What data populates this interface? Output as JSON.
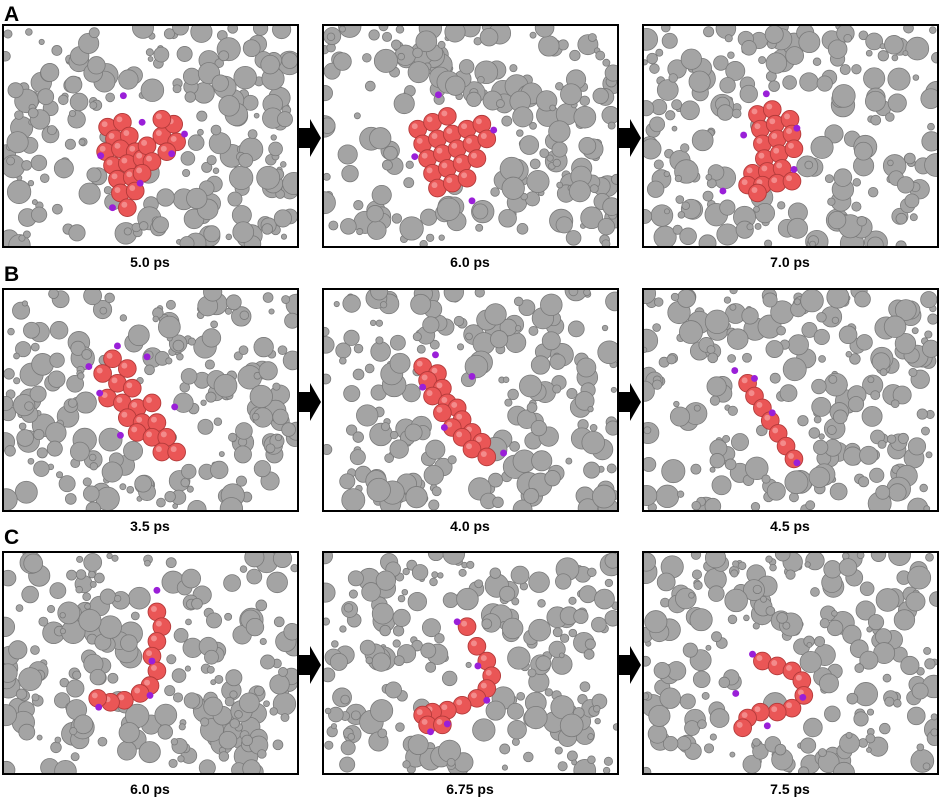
{
  "rows": [
    {
      "letter": "A",
      "arrow_icon": "right-arrow-icon",
      "panels": [
        {
          "time": "5.0 ps",
          "molecule": "curved-fused-ring-cluster"
        },
        {
          "time": "6.0 ps",
          "molecule": "fused-ring-cluster"
        },
        {
          "time": "7.0 ps",
          "molecule": "vertical-stacked-cluster"
        }
      ]
    },
    {
      "letter": "B",
      "arrow_icon": "right-arrow-icon",
      "panels": [
        {
          "time": "3.5 ps",
          "molecule": "flat-fused-ring-sheet"
        },
        {
          "time": "4.0 ps",
          "molecule": "tilted-fused-ring-sheet"
        },
        {
          "time": "4.5 ps",
          "molecule": "edge-on-chain"
        }
      ]
    },
    {
      "letter": "C",
      "arrow_icon": "right-arrow-icon",
      "panels": [
        {
          "time": "6.0 ps",
          "molecule": "open-bent-chain"
        },
        {
          "time": "6.75 ps",
          "molecule": "curling-chain"
        },
        {
          "time": "7.5 ps",
          "molecule": "hook-shaped-chain"
        }
      ]
    }
  ],
  "colors": {
    "background_particle": "#a4a4a4",
    "molecule_atom": "#ea5656",
    "terminal_atom": "#9a1fd8",
    "frame": "#000000",
    "arrow": "#000000"
  }
}
